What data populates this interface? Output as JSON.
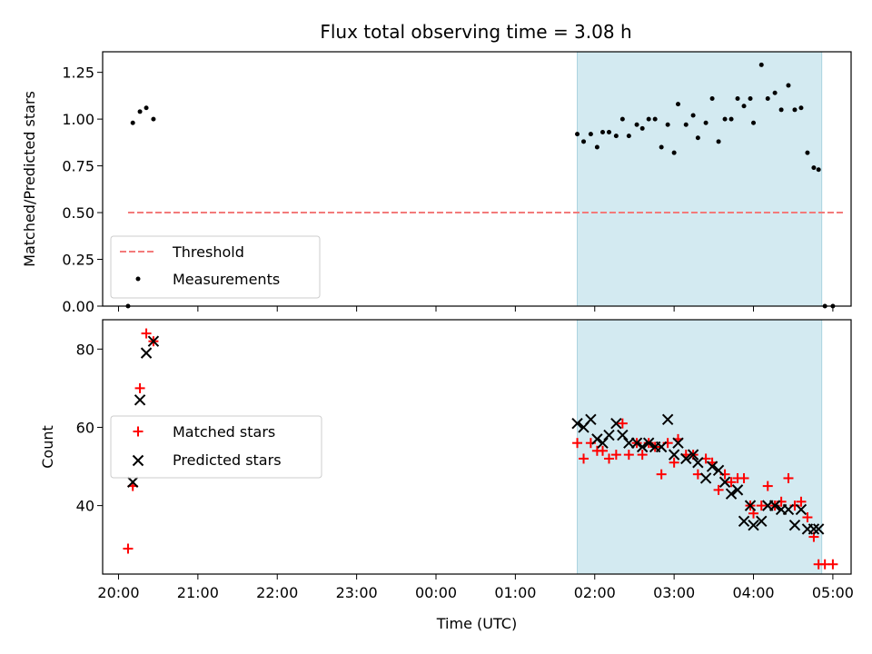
{
  "chart_data": {
    "title": "Flux total observing time = 3.08 h",
    "xlabel": "Time (UTC)",
    "x_tick_labels": [
      "20:00",
      "21:00",
      "22:00",
      "23:00",
      "00:00",
      "01:00",
      "02:00",
      "03:00",
      "04:00",
      "05:00"
    ],
    "x_range_hours": [
      -0.2,
      9.23
    ],
    "highlight_span_hours": [
      5.78,
      8.86
    ],
    "colors": {
      "highlight": "#d3eaf1",
      "highlight_edge": "#a9d3e0",
      "threshold": "#f37a7a",
      "measurements": "#000000",
      "matched": "#ff0000",
      "predicted": "#000000"
    },
    "panels": [
      {
        "type": "scatter",
        "ylabel": "Matched/Predicted stars",
        "ylim": [
          0,
          1.36
        ],
        "y_ticks": [
          0.0,
          0.25,
          0.5,
          0.75,
          1.0,
          1.25
        ],
        "y_tick_labels": [
          "0.00",
          "0.25",
          "0.50",
          "0.75",
          "1.00",
          "1.25"
        ],
        "legend": {
          "location": "lower-left",
          "entries": [
            {
              "label": "Threshold",
              "marker": "dashed-line"
            },
            {
              "label": "Measurements",
              "marker": "dot"
            }
          ]
        },
        "threshold": {
          "name": "Threshold",
          "y": 0.5,
          "x_range": [
            0.12,
            9.15
          ]
        },
        "series": [
          {
            "name": "Measurements",
            "x": [
              0.12,
              0.18,
              0.27,
              0.35,
              0.44,
              5.78,
              5.86,
              5.95,
              6.03,
              6.1,
              6.18,
              6.27,
              6.35,
              6.43,
              6.53,
              6.6,
              6.68,
              6.76,
              6.84,
              6.92,
              7.0,
              7.05,
              7.15,
              7.24,
              7.3,
              7.4,
              7.48,
              7.56,
              7.64,
              7.72,
              7.8,
              7.88,
              7.96,
              8.0,
              8.1,
              8.18,
              8.27,
              8.35,
              8.44,
              8.52,
              8.6,
              8.68,
              8.76,
              8.82,
              8.9,
              9.0
            ],
            "y": [
              0.0,
              0.98,
              1.04,
              1.06,
              1.0,
              0.92,
              0.88,
              0.92,
              0.85,
              0.93,
              0.93,
              0.91,
              1.0,
              0.91,
              0.97,
              0.95,
              1.0,
              1.0,
              0.85,
              0.97,
              0.82,
              1.08,
              0.97,
              1.02,
              0.9,
              0.98,
              1.11,
              0.88,
              1.0,
              1.0,
              1.11,
              1.07,
              1.11,
              0.98,
              1.29,
              1.11,
              1.14,
              1.05,
              1.18,
              1.05,
              1.06,
              0.82,
              0.74,
              0.73,
              0.0,
              0.0
            ]
          }
        ]
      },
      {
        "type": "scatter",
        "ylabel": "Count",
        "ylim": [
          22.5,
          87.5
        ],
        "y_ticks": [
          40,
          60,
          80
        ],
        "y_tick_labels": [
          "40",
          "60",
          "80"
        ],
        "legend": {
          "location": "center-left",
          "entries": [
            {
              "label": "Matched stars",
              "marker": "plus"
            },
            {
              "label": "Predicted stars",
              "marker": "x"
            }
          ]
        },
        "series": [
          {
            "name": "Matched stars",
            "marker": "plus",
            "x": [
              0.12,
              0.18,
              0.27,
              0.35,
              0.44,
              5.78,
              5.86,
              5.95,
              6.03,
              6.1,
              6.18,
              6.27,
              6.35,
              6.43,
              6.53,
              6.6,
              6.68,
              6.76,
              6.84,
              6.92,
              7.0,
              7.05,
              7.15,
              7.24,
              7.3,
              7.4,
              7.48,
              7.56,
              7.64,
              7.72,
              7.8,
              7.88,
              7.96,
              8.0,
              8.1,
              8.18,
              8.27,
              8.35,
              8.44,
              8.52,
              8.6,
              8.68,
              8.76,
              8.82,
              8.9,
              9.0
            ],
            "y": [
              29,
              45,
              70,
              84,
              82,
              56,
              52,
              56,
              54,
              54,
              52,
              53,
              61,
              53,
              56,
              53,
              56,
              55,
              48,
              56,
              51,
              57,
              53,
              53,
              48,
              52,
              51,
              44,
              48,
              46,
              47,
              47,
              40,
              38,
              40,
              45,
              40,
              41,
              47,
              40,
              41,
              37,
              32,
              25,
              25,
              25
            ]
          },
          {
            "name": "Predicted stars",
            "marker": "x",
            "x": [
              0.18,
              0.27,
              0.35,
              0.44,
              5.78,
              5.86,
              5.95,
              6.03,
              6.1,
              6.18,
              6.27,
              6.35,
              6.43,
              6.53,
              6.6,
              6.68,
              6.76,
              6.84,
              6.92,
              7.0,
              7.05,
              7.15,
              7.24,
              7.3,
              7.4,
              7.48,
              7.56,
              7.64,
              7.72,
              7.8,
              7.88,
              7.96,
              8.0,
              8.1,
              8.18,
              8.27,
              8.35,
              8.44,
              8.52,
              8.6,
              8.68,
              8.76,
              8.82
            ],
            "y": [
              46,
              67,
              79,
              82,
              61,
              60,
              62,
              57,
              56,
              58,
              61,
              58,
              56,
              56,
              55,
              56,
              55,
              55,
              62,
              53,
              56,
              52,
              53,
              51,
              47,
              50,
              49,
              46,
              43,
              44,
              36,
              40,
              35,
              36,
              40,
              40,
              39,
              39,
              35,
              39,
              34,
              34,
              34
            ]
          }
        ]
      }
    ]
  }
}
